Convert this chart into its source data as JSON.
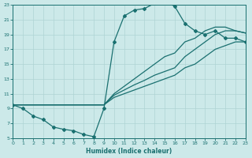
{
  "xlabel": "Humidex (Indice chaleur)",
  "xlim": [
    0,
    23
  ],
  "ylim": [
    5,
    23
  ],
  "xticks": [
    0,
    1,
    2,
    3,
    4,
    5,
    6,
    7,
    8,
    9,
    10,
    11,
    12,
    13,
    14,
    15,
    16,
    17,
    18,
    19,
    20,
    21,
    22,
    23
  ],
  "yticks": [
    5,
    7,
    9,
    11,
    13,
    15,
    17,
    19,
    21,
    23
  ],
  "bg_color": "#cce9e9",
  "line_color": "#1a7070",
  "grid_color": "#afd4d4",
  "curve1_x": [
    0,
    1,
    2,
    3,
    4,
    5,
    6,
    7,
    8,
    9,
    10,
    11,
    12,
    13,
    14,
    15,
    16,
    17,
    18,
    19,
    20,
    21,
    22,
    23
  ],
  "curve1_y": [
    9.5,
    9.0,
    8.0,
    7.5,
    6.5,
    6.2,
    6.0,
    5.5,
    5.2,
    9.0,
    18.0,
    21.5,
    22.3,
    22.5,
    23.2,
    23.5,
    22.8,
    20.5,
    19.5,
    19.0,
    19.5,
    18.5,
    18.5,
    18.0
  ],
  "curve2_x": [
    0,
    9,
    10,
    11,
    12,
    13,
    14,
    15,
    16,
    17,
    18,
    19,
    20,
    21,
    22,
    23
  ],
  "curve2_y": [
    9.5,
    9.5,
    10.5,
    11.0,
    11.5,
    12.0,
    12.5,
    13.0,
    13.5,
    14.5,
    15.0,
    16.0,
    17.0,
    17.5,
    18.0,
    18.0
  ],
  "curve3_x": [
    0,
    9,
    10,
    11,
    12,
    13,
    14,
    15,
    16,
    17,
    18,
    19,
    20,
    21,
    22,
    23
  ],
  "curve3_y": [
    9.5,
    9.5,
    10.8,
    11.5,
    12.2,
    12.8,
    13.5,
    14.0,
    14.5,
    16.0,
    17.0,
    18.0,
    19.0,
    19.5,
    19.5,
    19.2
  ],
  "curve4_x": [
    0,
    9,
    10,
    11,
    12,
    13,
    14,
    15,
    16,
    17,
    18,
    19,
    20,
    21,
    22,
    23
  ],
  "curve4_y": [
    9.5,
    9.5,
    11.0,
    12.0,
    13.0,
    14.0,
    15.0,
    16.0,
    16.5,
    18.0,
    18.5,
    19.5,
    20.0,
    20.0,
    19.5,
    19.2
  ]
}
